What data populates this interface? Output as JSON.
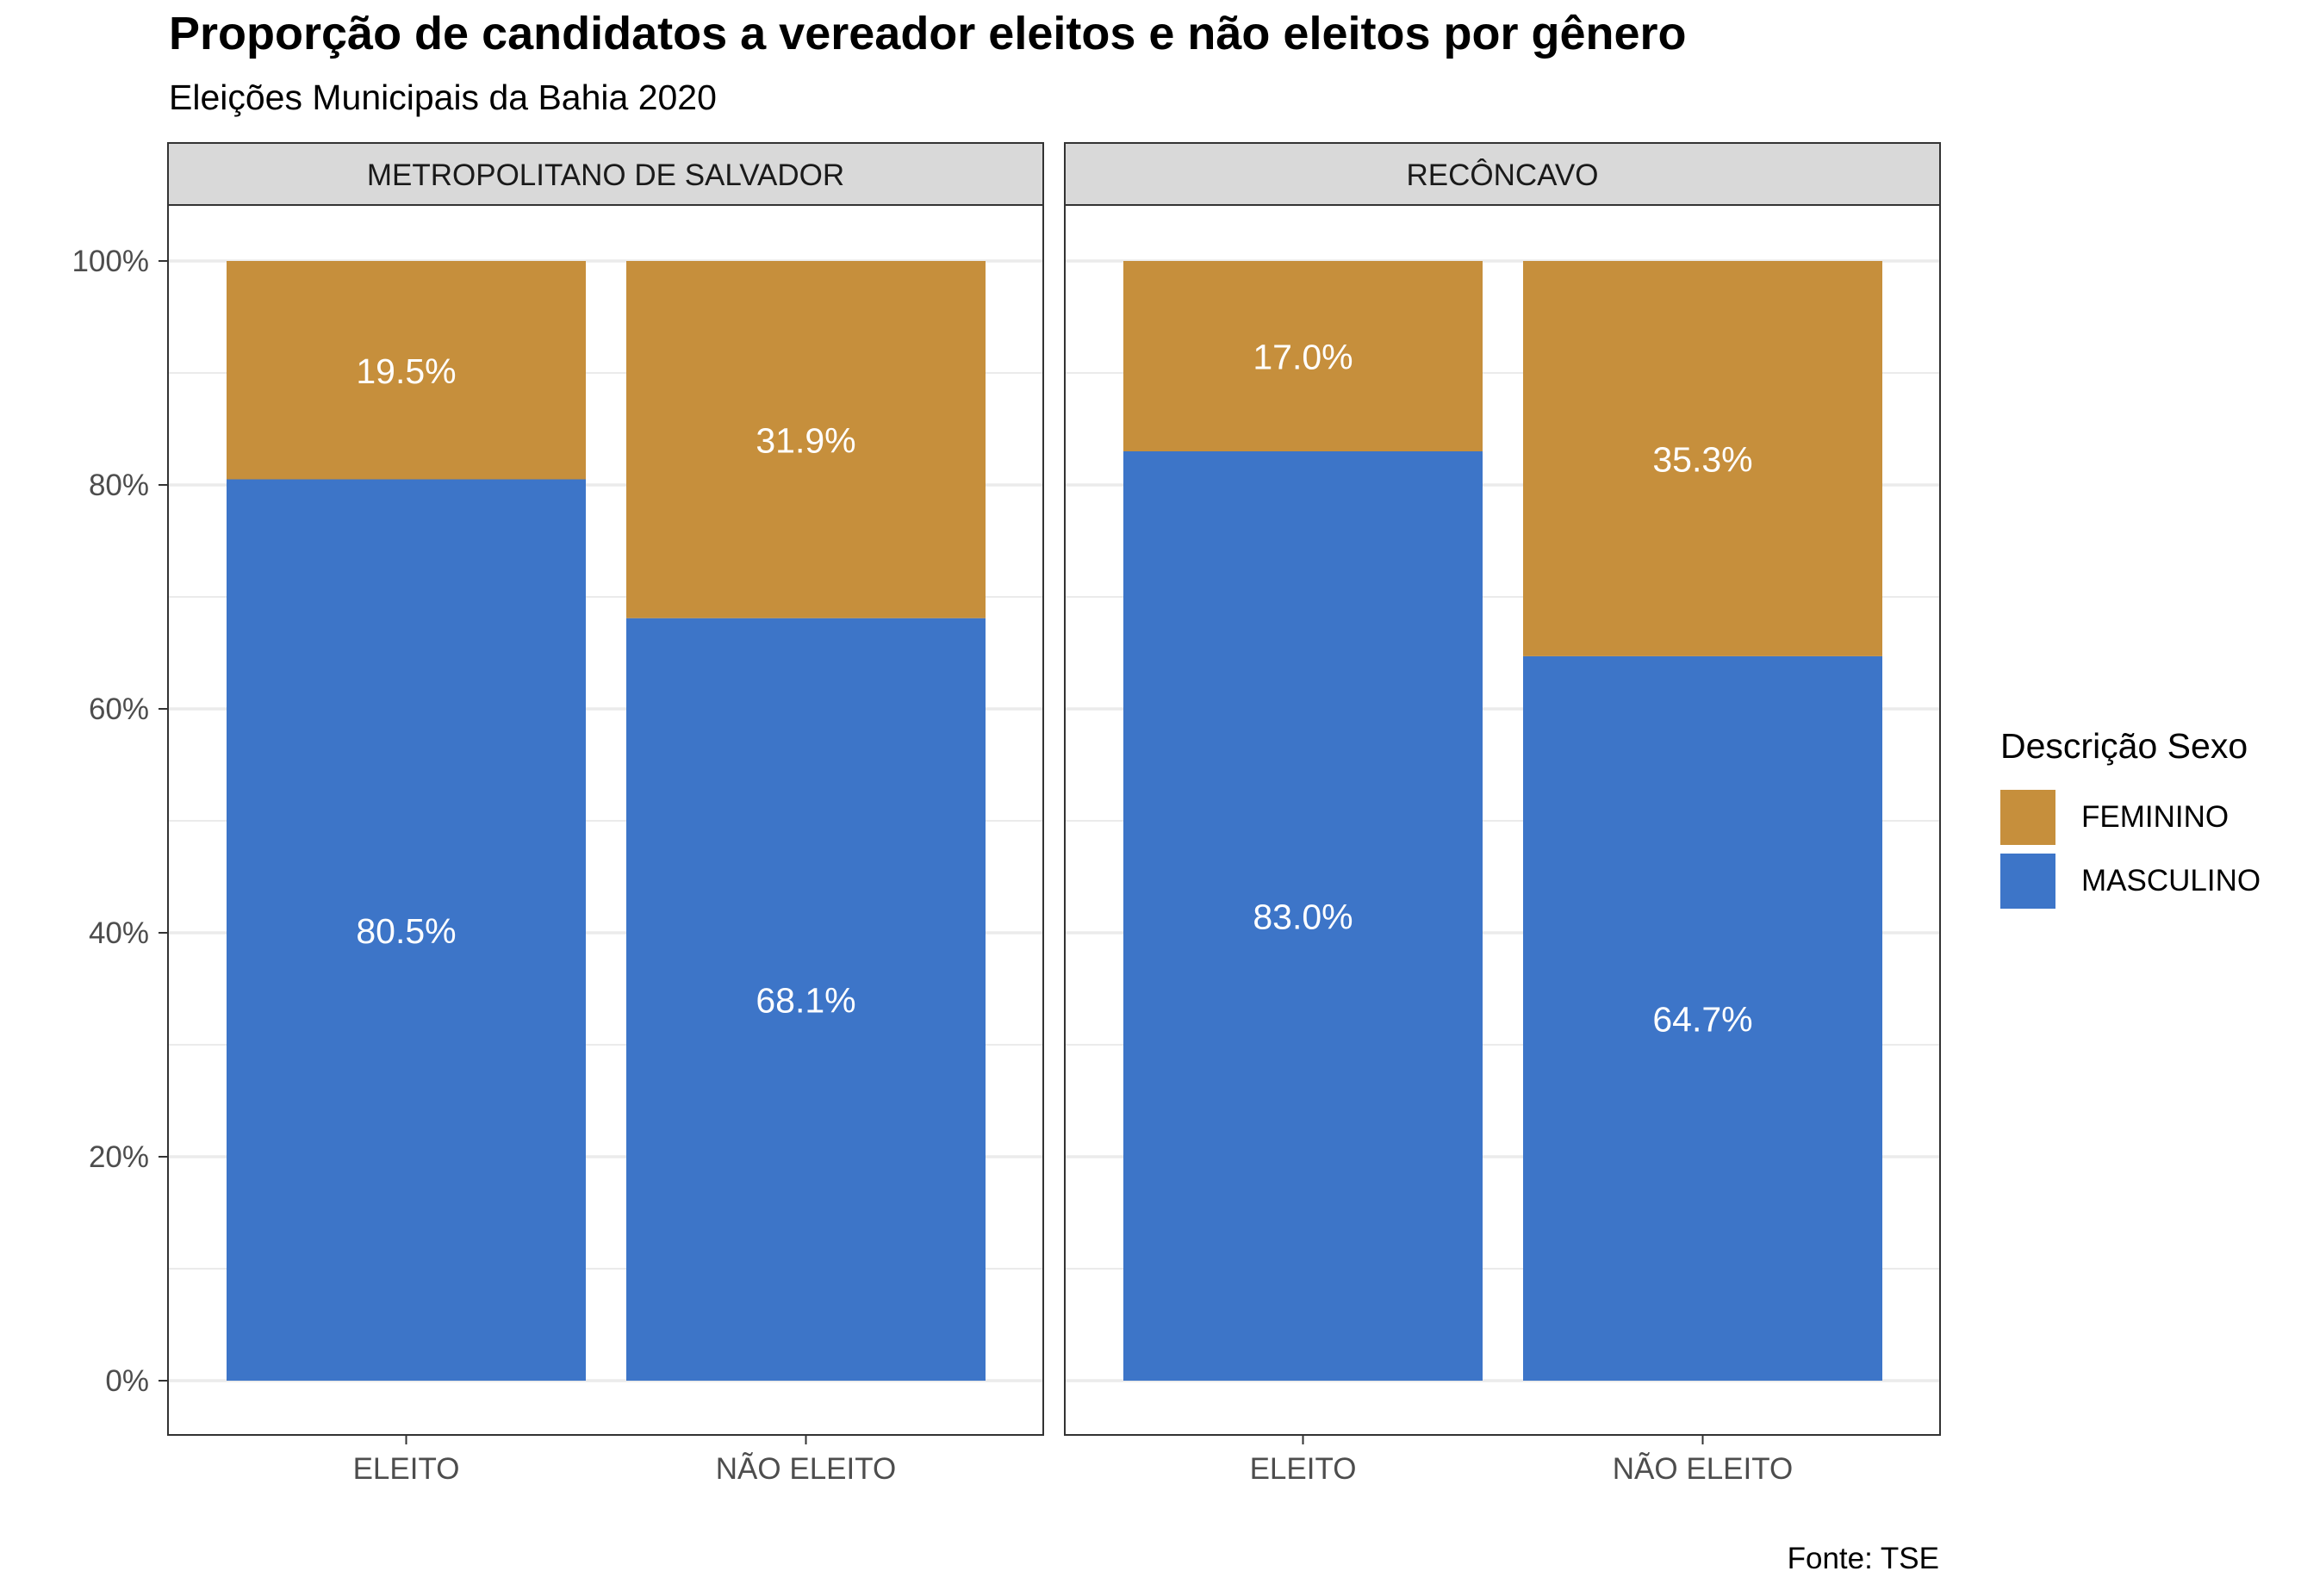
{
  "title": "Proporção de candidatos a vereador eleitos e não eleitos por gênero",
  "subtitle": "Eleições Municipais da Bahia 2020",
  "caption": "Fonte: TSE",
  "colors": {
    "feminino": "#C68F3C",
    "masculino": "#3D75C8",
    "strip_bg": "#D9D9D9",
    "grid": "#EBEBEB"
  },
  "legend": {
    "title": "Descrição Sexo",
    "items": [
      "FEMININO",
      "MASCULINO"
    ]
  },
  "chart_data": {
    "type": "bar",
    "stacked": true,
    "facets": [
      "METROPOLITANO DE SALVADOR",
      "RECÔNCAVO"
    ],
    "categories": [
      "ELEITO",
      "NÃO ELEITO"
    ],
    "series": [
      {
        "name": "FEMININO",
        "values": [
          [
            19.5,
            31.9
          ],
          [
            17.0,
            35.3
          ]
        ],
        "labels": [
          [
            "19.5%",
            "31.9%"
          ],
          [
            "17.0%",
            "35.3%"
          ]
        ]
      },
      {
        "name": "MASCULINO",
        "values": [
          [
            80.5,
            68.1
          ],
          [
            83.0,
            64.7
          ]
        ],
        "labels": [
          [
            "80.5%",
            "68.1%"
          ],
          [
            "83.0%",
            "64.7%"
          ]
        ]
      }
    ],
    "ylim": [
      0,
      100
    ],
    "yticks": [
      "0%",
      "20%",
      "40%",
      "60%",
      "80%",
      "100%"
    ],
    "grid": true,
    "legend_position": "right"
  }
}
